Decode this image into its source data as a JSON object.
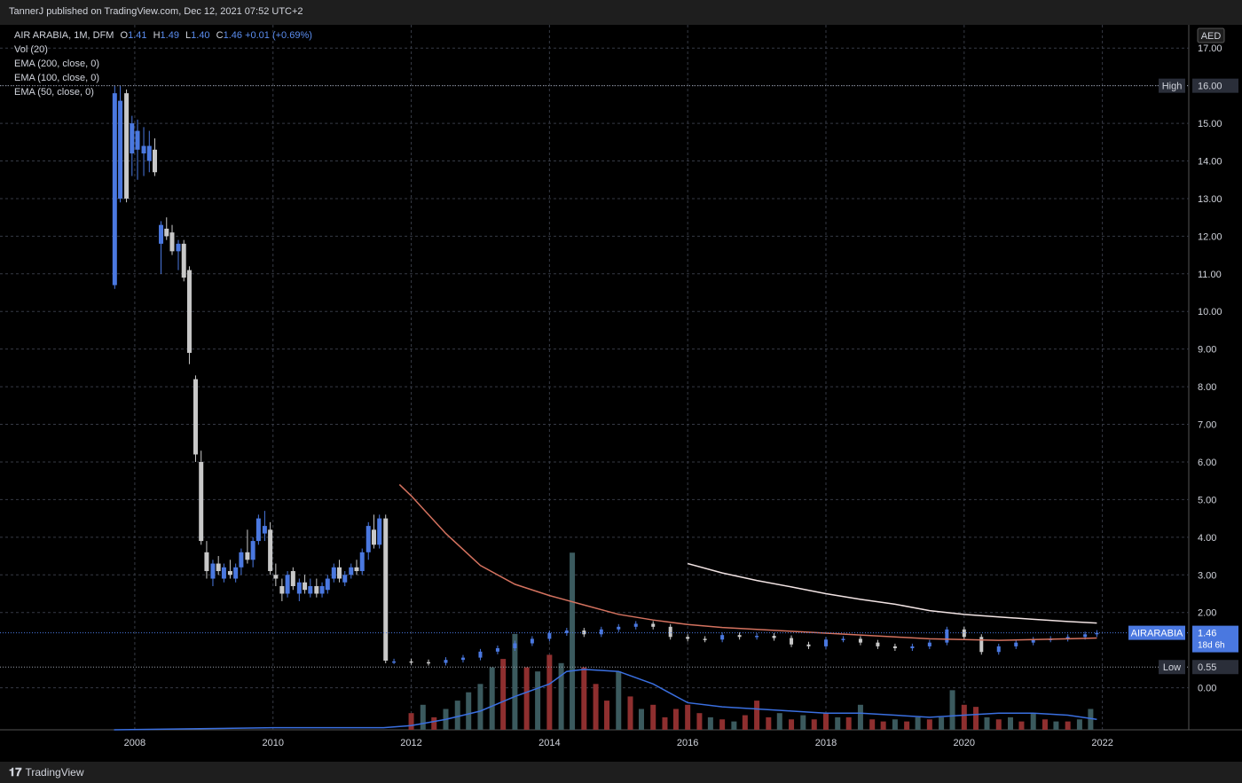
{
  "header": {
    "publisher": "TannerJ published on TradingView.com, Dec 12, 2021 07:52 UTC+2"
  },
  "legend": {
    "symbol": "AIR ARABIA, 1M, DFM",
    "o_label": "O",
    "o": "1.41",
    "h_label": "H",
    "h": "1.49",
    "l_label": "L",
    "l": "1.40",
    "c_label": "C",
    "c": "1.46",
    "change": "+0.01 (+0.69%)",
    "vol": "Vol (20)",
    "ema200": "EMA (200, close, 0)",
    "ema100": "EMA (100, close, 0)",
    "ema50": "EMA (50, close, 0)"
  },
  "footer": {
    "brand": "TradingView"
  },
  "colors": {
    "background": "#000000",
    "grid": "#363a45",
    "bull": "#4a78e0",
    "bear": "#c8c8c8",
    "ema200": "#f2e4e4",
    "ema100": "#d4725f",
    "vol_ma": "#3a6fe0",
    "vol_up": "#3b5a5e",
    "vol_down": "#8e2f2f"
  },
  "chart_data": {
    "type": "candlestick",
    "interval": "1M",
    "currency": "AED",
    "ylim": [
      -1.0,
      17.5
    ],
    "y_ticks": [
      17.0,
      16.0,
      15.0,
      14.0,
      13.0,
      12.0,
      11.0,
      10.0,
      9.0,
      8.0,
      7.0,
      6.0,
      5.0,
      4.0,
      3.0,
      2.0,
      0.0
    ],
    "y_tick_labels": [
      "17.00",
      "16.00",
      "15.00",
      "14.00",
      "13.00",
      "12.00",
      "11.00",
      "10.00",
      "9.00",
      "8.00",
      "7.00",
      "6.00",
      "5.00",
      "4.00",
      "3.00",
      "2.00",
      "0.00"
    ],
    "x_ticks": [
      2008,
      2010,
      2012,
      2014,
      2016,
      2018,
      2020,
      2022
    ],
    "x_tick_labels": [
      "2008",
      "2010",
      "2012",
      "2014",
      "2016",
      "2018",
      "2020",
      "2022"
    ],
    "xlim": [
      2006.05,
      2023.25
    ],
    "grid": true,
    "high": {
      "label": "High",
      "value": 16.0,
      "text": "16.00"
    },
    "low": {
      "label": "Low",
      "value": 0.55,
      "text": "0.55"
    },
    "last": {
      "symbol": "AIRARABIA",
      "price": 1.46,
      "text": "1.46",
      "countdown": "18d 6h"
    },
    "candles": [
      {
        "t": 2007.71,
        "o": 10.7,
        "h": 16.0,
        "l": 10.6,
        "c": 15.8
      },
      {
        "t": 2007.79,
        "o": 13.0,
        "h": 16.0,
        "l": 12.9,
        "c": 15.6
      },
      {
        "t": 2007.88,
        "o": 15.8,
        "h": 15.9,
        "l": 12.9,
        "c": 13.0
      },
      {
        "t": 2007.96,
        "o": 14.2,
        "h": 15.2,
        "l": 13.6,
        "c": 15.0
      },
      {
        "t": 2008.04,
        "o": 14.3,
        "h": 15.1,
        "l": 13.5,
        "c": 14.8
      },
      {
        "t": 2008.13,
        "o": 14.2,
        "h": 14.9,
        "l": 13.6,
        "c": 14.4
      },
      {
        "t": 2008.21,
        "o": 14.0,
        "h": 14.8,
        "l": 13.7,
        "c": 14.4
      },
      {
        "t": 2008.29,
        "o": 14.3,
        "h": 14.6,
        "l": 13.6,
        "c": 13.7
      },
      {
        "t": 2008.38,
        "o": 11.8,
        "h": 12.4,
        "l": 11.0,
        "c": 12.3
      },
      {
        "t": 2008.46,
        "o": 12.2,
        "h": 12.5,
        "l": 11.9,
        "c": 12.0
      },
      {
        "t": 2008.54,
        "o": 12.1,
        "h": 12.3,
        "l": 11.5,
        "c": 11.6
      },
      {
        "t": 2008.63,
        "o": 11.6,
        "h": 11.9,
        "l": 11.1,
        "c": 11.8
      },
      {
        "t": 2008.71,
        "o": 11.8,
        "h": 11.9,
        "l": 10.8,
        "c": 10.9
      },
      {
        "t": 2008.79,
        "o": 11.1,
        "h": 11.2,
        "l": 8.6,
        "c": 8.9
      },
      {
        "t": 2008.88,
        "o": 8.2,
        "h": 8.3,
        "l": 6.0,
        "c": 6.2
      },
      {
        "t": 2008.96,
        "o": 6.0,
        "h": 6.3,
        "l": 3.8,
        "c": 3.9
      },
      {
        "t": 2009.04,
        "o": 3.6,
        "h": 3.9,
        "l": 2.9,
        "c": 3.1
      },
      {
        "t": 2009.13,
        "o": 2.9,
        "h": 3.4,
        "l": 2.7,
        "c": 3.3
      },
      {
        "t": 2009.21,
        "o": 3.3,
        "h": 3.5,
        "l": 3.0,
        "c": 3.1
      },
      {
        "t": 2009.29,
        "o": 2.9,
        "h": 3.3,
        "l": 2.8,
        "c": 3.2
      },
      {
        "t": 2009.38,
        "o": 3.1,
        "h": 3.4,
        "l": 2.9,
        "c": 3.0
      },
      {
        "t": 2009.46,
        "o": 2.9,
        "h": 3.3,
        "l": 2.8,
        "c": 3.2
      },
      {
        "t": 2009.54,
        "o": 3.2,
        "h": 3.7,
        "l": 3.0,
        "c": 3.6
      },
      {
        "t": 2009.63,
        "o": 3.6,
        "h": 4.2,
        "l": 3.3,
        "c": 3.4
      },
      {
        "t": 2009.71,
        "o": 3.4,
        "h": 4.0,
        "l": 3.2,
        "c": 3.9
      },
      {
        "t": 2009.79,
        "o": 3.9,
        "h": 4.6,
        "l": 3.8,
        "c": 4.5
      },
      {
        "t": 2009.88,
        "o": 4.1,
        "h": 4.7,
        "l": 3.9,
        "c": 4.3
      },
      {
        "t": 2009.96,
        "o": 4.2,
        "h": 4.4,
        "l": 3.0,
        "c": 3.1
      },
      {
        "t": 2010.04,
        "o": 3.0,
        "h": 3.3,
        "l": 2.7,
        "c": 2.9
      },
      {
        "t": 2010.13,
        "o": 2.7,
        "h": 2.9,
        "l": 2.3,
        "c": 2.5
      },
      {
        "t": 2010.21,
        "o": 2.5,
        "h": 3.1,
        "l": 2.4,
        "c": 3.0
      },
      {
        "t": 2010.29,
        "o": 3.1,
        "h": 3.2,
        "l": 2.6,
        "c": 2.7
      },
      {
        "t": 2010.38,
        "o": 2.5,
        "h": 2.9,
        "l": 2.3,
        "c": 2.8
      },
      {
        "t": 2010.46,
        "o": 2.8,
        "h": 3.0,
        "l": 2.5,
        "c": 2.6
      },
      {
        "t": 2010.54,
        "o": 2.5,
        "h": 2.9,
        "l": 2.4,
        "c": 2.7
      },
      {
        "t": 2010.63,
        "o": 2.7,
        "h": 2.9,
        "l": 2.4,
        "c": 2.5
      },
      {
        "t": 2010.71,
        "o": 2.5,
        "h": 2.8,
        "l": 2.4,
        "c": 2.7
      },
      {
        "t": 2010.79,
        "o": 2.6,
        "h": 3.0,
        "l": 2.5,
        "c": 2.9
      },
      {
        "t": 2010.88,
        "o": 2.9,
        "h": 3.3,
        "l": 2.8,
        "c": 3.2
      },
      {
        "t": 2010.96,
        "o": 3.2,
        "h": 3.4,
        "l": 2.8,
        "c": 2.9
      },
      {
        "t": 2011.04,
        "o": 2.8,
        "h": 3.1,
        "l": 2.7,
        "c": 3.0
      },
      {
        "t": 2011.13,
        "o": 3.0,
        "h": 3.3,
        "l": 2.9,
        "c": 3.2
      },
      {
        "t": 2011.21,
        "o": 3.2,
        "h": 3.4,
        "l": 3.0,
        "c": 3.1
      },
      {
        "t": 2011.29,
        "o": 3.1,
        "h": 3.7,
        "l": 3.0,
        "c": 3.6
      },
      {
        "t": 2011.38,
        "o": 3.6,
        "h": 4.4,
        "l": 3.4,
        "c": 4.3
      },
      {
        "t": 2011.46,
        "o": 4.2,
        "h": 4.6,
        "l": 3.7,
        "c": 3.8
      },
      {
        "t": 2011.54,
        "o": 3.8,
        "h": 4.6,
        "l": 3.7,
        "c": 4.5
      },
      {
        "t": 2011.63,
        "o": 4.5,
        "h": 4.6,
        "l": 0.65,
        "c": 0.72
      }
    ],
    "candles_note_late": "subsequent monthly candles are compressed near 0.6–1.8",
    "late_closes": [
      {
        "t": 2011.75,
        "c": 0.7
      },
      {
        "t": 2012.0,
        "c": 0.68
      },
      {
        "t": 2012.25,
        "c": 0.66
      },
      {
        "t": 2012.5,
        "c": 0.74
      },
      {
        "t": 2012.75,
        "c": 0.8
      },
      {
        "t": 2013.0,
        "c": 0.96
      },
      {
        "t": 2013.25,
        "c": 1.05
      },
      {
        "t": 2013.5,
        "c": 1.18
      },
      {
        "t": 2013.75,
        "c": 1.3
      },
      {
        "t": 2014.0,
        "c": 1.45
      },
      {
        "t": 2014.25,
        "c": 1.52
      },
      {
        "t": 2014.5,
        "c": 1.42
      },
      {
        "t": 2014.75,
        "c": 1.55
      },
      {
        "t": 2015.0,
        "c": 1.62
      },
      {
        "t": 2015.25,
        "c": 1.7
      },
      {
        "t": 2015.5,
        "c": 1.62
      },
      {
        "t": 2015.75,
        "c": 1.35
      },
      {
        "t": 2016.0,
        "c": 1.3
      },
      {
        "t": 2016.25,
        "c": 1.28
      },
      {
        "t": 2016.5,
        "c": 1.4
      },
      {
        "t": 2016.75,
        "c": 1.35
      },
      {
        "t": 2017.0,
        "c": 1.38
      },
      {
        "t": 2017.25,
        "c": 1.32
      },
      {
        "t": 2017.5,
        "c": 1.15
      },
      {
        "t": 2017.75,
        "c": 1.1
      },
      {
        "t": 2018.0,
        "c": 1.28
      },
      {
        "t": 2018.25,
        "c": 1.3
      },
      {
        "t": 2018.5,
        "c": 1.2
      },
      {
        "t": 2018.75,
        "c": 1.1
      },
      {
        "t": 2019.0,
        "c": 1.05
      },
      {
        "t": 2019.25,
        "c": 1.1
      },
      {
        "t": 2019.5,
        "c": 1.2
      },
      {
        "t": 2019.75,
        "c": 1.55
      },
      {
        "t": 2020.0,
        "c": 1.35
      },
      {
        "t": 2020.25,
        "c": 0.95
      },
      {
        "t": 2020.5,
        "c": 1.1
      },
      {
        "t": 2020.75,
        "c": 1.2
      },
      {
        "t": 2021.0,
        "c": 1.28
      },
      {
        "t": 2021.25,
        "c": 1.3
      },
      {
        "t": 2021.5,
        "c": 1.35
      },
      {
        "t": 2021.75,
        "c": 1.42
      },
      {
        "t": 2021.92,
        "c": 1.46
      }
    ],
    "series": [
      {
        "name": "EMA (200, close, 0)",
        "values": [
          [
            2016.0,
            3.3
          ],
          [
            2016.5,
            3.05
          ],
          [
            2017.0,
            2.85
          ],
          [
            2017.5,
            2.68
          ],
          [
            2018.0,
            2.5
          ],
          [
            2018.5,
            2.35
          ],
          [
            2019.0,
            2.22
          ],
          [
            2019.5,
            2.05
          ],
          [
            2020.0,
            1.95
          ],
          [
            2020.5,
            1.88
          ],
          [
            2021.0,
            1.82
          ],
          [
            2021.5,
            1.76
          ],
          [
            2021.92,
            1.72
          ]
        ]
      },
      {
        "name": "EMA (100, close, 0)",
        "values": [
          [
            2011.83,
            5.4
          ],
          [
            2012.0,
            5.1
          ],
          [
            2012.5,
            4.1
          ],
          [
            2013.0,
            3.25
          ],
          [
            2013.5,
            2.75
          ],
          [
            2014.0,
            2.45
          ],
          [
            2014.5,
            2.2
          ],
          [
            2015.0,
            1.95
          ],
          [
            2015.5,
            1.8
          ],
          [
            2016.0,
            1.68
          ],
          [
            2016.5,
            1.6
          ],
          [
            2017.0,
            1.55
          ],
          [
            2017.5,
            1.5
          ],
          [
            2018.0,
            1.45
          ],
          [
            2018.5,
            1.4
          ],
          [
            2019.0,
            1.35
          ],
          [
            2019.5,
            1.3
          ],
          [
            2020.0,
            1.28
          ],
          [
            2020.5,
            1.26
          ],
          [
            2021.0,
            1.28
          ],
          [
            2021.5,
            1.3
          ],
          [
            2021.92,
            1.32
          ]
        ]
      }
    ],
    "volume": {
      "bars": [
        {
          "t": 2012.0,
          "v": 0.08,
          "up": false
        },
        {
          "t": 2012.17,
          "v": 0.12,
          "up": true
        },
        {
          "t": 2012.33,
          "v": 0.06,
          "up": false
        },
        {
          "t": 2012.5,
          "v": 0.1,
          "up": true
        },
        {
          "t": 2012.67,
          "v": 0.14,
          "up": true
        },
        {
          "t": 2012.83,
          "v": 0.18,
          "up": true
        },
        {
          "t": 2013.0,
          "v": 0.22,
          "up": true
        },
        {
          "t": 2013.17,
          "v": 0.3,
          "up": true
        },
        {
          "t": 2013.33,
          "v": 0.34,
          "up": false
        },
        {
          "t": 2013.5,
          "v": 0.46,
          "up": true
        },
        {
          "t": 2013.67,
          "v": 0.3,
          "up": false
        },
        {
          "t": 2013.83,
          "v": 0.28,
          "up": true
        },
        {
          "t": 2014.0,
          "v": 0.36,
          "up": false
        },
        {
          "t": 2014.17,
          "v": 0.32,
          "up": true
        },
        {
          "t": 2014.33,
          "v": 0.85,
          "up": true
        },
        {
          "t": 2014.5,
          "v": 0.3,
          "up": false
        },
        {
          "t": 2014.67,
          "v": 0.22,
          "up": false
        },
        {
          "t": 2014.83,
          "v": 0.14,
          "up": false
        },
        {
          "t": 2015.0,
          "v": 0.28,
          "up": true
        },
        {
          "t": 2015.17,
          "v": 0.16,
          "up": false
        },
        {
          "t": 2015.33,
          "v": 0.1,
          "up": true
        },
        {
          "t": 2015.5,
          "v": 0.12,
          "up": false
        },
        {
          "t": 2015.67,
          "v": 0.06,
          "up": false
        },
        {
          "t": 2015.83,
          "v": 0.1,
          "up": false
        },
        {
          "t": 2016.0,
          "v": 0.12,
          "up": false
        },
        {
          "t": 2016.17,
          "v": 0.08,
          "up": false
        },
        {
          "t": 2016.33,
          "v": 0.06,
          "up": true
        },
        {
          "t": 2016.5,
          "v": 0.05,
          "up": false
        },
        {
          "t": 2016.67,
          "v": 0.04,
          "up": true
        },
        {
          "t": 2016.83,
          "v": 0.07,
          "up": false
        },
        {
          "t": 2017.0,
          "v": 0.14,
          "up": false
        },
        {
          "t": 2017.17,
          "v": 0.06,
          "up": false
        },
        {
          "t": 2017.33,
          "v": 0.08,
          "up": true
        },
        {
          "t": 2017.5,
          "v": 0.05,
          "up": false
        },
        {
          "t": 2017.67,
          "v": 0.07,
          "up": true
        },
        {
          "t": 2017.83,
          "v": 0.05,
          "up": false
        },
        {
          "t": 2018.0,
          "v": 0.08,
          "up": false
        },
        {
          "t": 2018.17,
          "v": 0.06,
          "up": true
        },
        {
          "t": 2018.33,
          "v": 0.06,
          "up": false
        },
        {
          "t": 2018.5,
          "v": 0.12,
          "up": true
        },
        {
          "t": 2018.67,
          "v": 0.05,
          "up": false
        },
        {
          "t": 2018.83,
          "v": 0.04,
          "up": false
        },
        {
          "t": 2019.0,
          "v": 0.05,
          "up": true
        },
        {
          "t": 2019.17,
          "v": 0.04,
          "up": false
        },
        {
          "t": 2019.33,
          "v": 0.06,
          "up": true
        },
        {
          "t": 2019.5,
          "v": 0.05,
          "up": false
        },
        {
          "t": 2019.67,
          "v": 0.06,
          "up": true
        },
        {
          "t": 2019.83,
          "v": 0.19,
          "up": true
        },
        {
          "t": 2020.0,
          "v": 0.12,
          "up": false
        },
        {
          "t": 2020.17,
          "v": 0.11,
          "up": false
        },
        {
          "t": 2020.33,
          "v": 0.06,
          "up": true
        },
        {
          "t": 2020.5,
          "v": 0.05,
          "up": false
        },
        {
          "t": 2020.67,
          "v": 0.06,
          "up": true
        },
        {
          "t": 2020.83,
          "v": 0.04,
          "up": false
        },
        {
          "t": 2021.0,
          "v": 0.08,
          "up": true
        },
        {
          "t": 2021.17,
          "v": 0.05,
          "up": false
        },
        {
          "t": 2021.33,
          "v": 0.04,
          "up": true
        },
        {
          "t": 2021.5,
          "v": 0.04,
          "up": false
        },
        {
          "t": 2021.67,
          "v": 0.05,
          "up": true
        },
        {
          "t": 2021.83,
          "v": 0.1,
          "up": true
        }
      ],
      "ma": [
        [
          2007.7,
          0.0
        ],
        [
          2010.0,
          0.01
        ],
        [
          2011.6,
          0.01
        ],
        [
          2012.0,
          0.02
        ],
        [
          2012.5,
          0.05
        ],
        [
          2013.0,
          0.09
        ],
        [
          2013.5,
          0.16
        ],
        [
          2014.0,
          0.22
        ],
        [
          2014.25,
          0.28
        ],
        [
          2014.5,
          0.29
        ],
        [
          2015.0,
          0.28
        ],
        [
          2015.5,
          0.22
        ],
        [
          2016.0,
          0.13
        ],
        [
          2016.5,
          0.11
        ],
        [
          2017.0,
          0.1
        ],
        [
          2017.5,
          0.09
        ],
        [
          2018.0,
          0.08
        ],
        [
          2018.5,
          0.08
        ],
        [
          2019.0,
          0.07
        ],
        [
          2019.5,
          0.06
        ],
        [
          2020.0,
          0.07
        ],
        [
          2020.5,
          0.08
        ],
        [
          2021.0,
          0.08
        ],
        [
          2021.5,
          0.07
        ],
        [
          2021.92,
          0.05
        ]
      ]
    }
  }
}
